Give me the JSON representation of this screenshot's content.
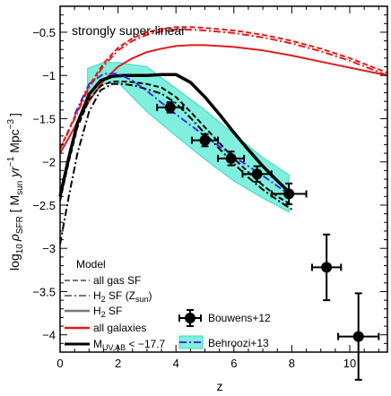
{
  "chart_data": {
    "type": "line",
    "annotation": "strongly super-linear",
    "xlabel": "z",
    "ylabel": {
      "main": "log",
      "main_sub": "10",
      "rho": "ρ",
      "rho_sub": "SFR",
      "units_open": " [ M",
      "units_sun": "sun",
      "units_yr": " yr",
      "units_yr_exp": "−1",
      "units_mpc": " Mpc",
      "units_mpc_exp": "−3",
      "units_close": "]"
    },
    "xlim": [
      0,
      11.3
    ],
    "ylim": [
      -4.2,
      -0.2
    ],
    "xticks": [
      0,
      2,
      4,
      6,
      8,
      10
    ],
    "yticks": [
      -4,
      -3.5,
      -3,
      -2.5,
      -2,
      -1.5,
      -1,
      -0.5
    ],
    "ytick_labels": [
      "−4",
      "−3.5",
      "−3",
      "−2.5",
      "−2",
      "−1.5",
      "−1",
      "−0.5"
    ],
    "band": {
      "x": [
        0.95,
        1.5,
        2.0,
        3.0,
        4.0,
        5.0,
        6.0,
        7.0,
        7.9
      ],
      "upper": [
        -0.92,
        -0.85,
        -0.85,
        -0.9,
        -1.15,
        -1.4,
        -1.68,
        -1.95,
        -2.15
      ],
      "lower": [
        -1.3,
        -1.1,
        -1.08,
        -1.42,
        -1.7,
        -1.97,
        -2.22,
        -2.42,
        -2.58
      ]
    },
    "series": [
      {
        "name": "all galaxies",
        "style": "all-gas",
        "color": "#e11b1b",
        "width": 2,
        "dash": "6,3",
        "x": [
          0,
          0.5,
          1,
          1.5,
          2,
          2.5,
          3,
          3.5,
          4,
          4.5,
          5,
          6,
          7,
          8,
          9,
          10,
          11.3
        ],
        "y": [
          -1.85,
          -1.48,
          -1.12,
          -0.86,
          -0.68,
          -0.57,
          -0.5,
          -0.46,
          -0.44,
          -0.44,
          -0.45,
          -0.48,
          -0.53,
          -0.6,
          -0.69,
          -0.8,
          -0.97
        ]
      },
      {
        "name": "all galaxies",
        "style": "h2-zsun",
        "color": "#e11b1b",
        "width": 2,
        "dash": "8,3,2,3",
        "x": [
          0,
          0.5,
          1,
          1.5,
          2,
          2.5,
          3,
          3.5,
          4,
          4.5,
          5,
          6,
          7,
          8,
          9,
          10,
          11.3
        ],
        "y": [
          -1.85,
          -1.5,
          -1.14,
          -0.89,
          -0.71,
          -0.6,
          -0.53,
          -0.49,
          -0.47,
          -0.47,
          -0.48,
          -0.51,
          -0.56,
          -0.63,
          -0.72,
          -0.83,
          -1.0
        ]
      },
      {
        "name": "all galaxies",
        "style": "h2",
        "color": "#e11b1b",
        "width": 2,
        "dash": "",
        "x": [
          0,
          0.5,
          1,
          1.5,
          2,
          2.5,
          3,
          3.5,
          4,
          4.5,
          5,
          6,
          7,
          8,
          9,
          10,
          11.3
        ],
        "y": [
          -1.9,
          -1.6,
          -1.3,
          -1.06,
          -0.9,
          -0.8,
          -0.73,
          -0.69,
          -0.66,
          -0.65,
          -0.65,
          -0.67,
          -0.71,
          -0.77,
          -0.84,
          -0.91,
          -1.0
        ]
      },
      {
        "name": "M_UV,AB < −17.7",
        "style": "all-gas",
        "color": "#000000",
        "width": 2,
        "dash": "6,3",
        "x": [
          0,
          0.3,
          0.6,
          1,
          1.4,
          1.8,
          2.2,
          2.6,
          3,
          3.5,
          4,
          4.5,
          5,
          5.5,
          6,
          6.5,
          7,
          7.5,
          8
        ],
        "y": [
          -2.45,
          -2.0,
          -1.6,
          -1.28,
          -1.12,
          -1.07,
          -1.07,
          -1.08,
          -1.1,
          -1.14,
          -1.25,
          -1.42,
          -1.6,
          -1.78,
          -1.96,
          -2.12,
          -2.27,
          -2.4,
          -2.5
        ]
      },
      {
        "name": "M_UV,AB < −17.7",
        "style": "h2-zsun",
        "color": "#000000",
        "width": 2,
        "dash": "8,3,2,3",
        "x": [
          0,
          0.3,
          0.6,
          1,
          1.4,
          1.8,
          2.2,
          2.6,
          3,
          3.5,
          4,
          4.5,
          5,
          5.5,
          6,
          6.5,
          7,
          7.5,
          8
        ],
        "y": [
          -2.95,
          -2.4,
          -1.9,
          -1.42,
          -1.17,
          -1.1,
          -1.1,
          -1.12,
          -1.16,
          -1.21,
          -1.32,
          -1.49,
          -1.67,
          -1.85,
          -2.02,
          -2.18,
          -2.32,
          -2.44,
          -2.55
        ]
      },
      {
        "name": "M_UV,AB < −17.7",
        "style": "h2",
        "color": "#000000",
        "width": 3.5,
        "dash": "",
        "x": [
          0,
          0.3,
          0.6,
          1,
          1.4,
          1.8,
          2.2,
          2.6,
          3,
          3.5,
          4,
          4.5,
          5,
          5.5,
          6,
          6.5,
          7,
          7.5,
          8
        ],
        "y": [
          -2.4,
          -1.95,
          -1.55,
          -1.22,
          -1.06,
          -1.01,
          -1.0,
          -1.0,
          -1.0,
          -0.99,
          -0.99,
          -1.08,
          -1.25,
          -1.45,
          -1.66,
          -1.86,
          -2.05,
          -2.22,
          -2.38
        ]
      },
      {
        "name": "Behroozi+13",
        "style": "behroozi",
        "color": "#4a2bd6",
        "width": 2,
        "dash": "8,3,2,3",
        "x": [
          0.5,
          1.0,
          1.5,
          2.0,
          2.5,
          3.0,
          4.0,
          5.0,
          6.0,
          7.0,
          8.0
        ],
        "y": [
          -1.45,
          -1.1,
          -0.98,
          -0.98,
          -1.06,
          -1.18,
          -1.45,
          -1.7,
          -1.94,
          -2.16,
          -2.4
        ]
      }
    ],
    "points": {
      "name": "Bouwens+12",
      "color": "#000000",
      "data": [
        {
          "x": 3.8,
          "y": -1.37,
          "xerr": 0.45,
          "yerr": 0.06
        },
        {
          "x": 5.0,
          "y": -1.75,
          "xerr": 0.45,
          "yerr": 0.07
        },
        {
          "x": 5.9,
          "y": -1.96,
          "xerr": 0.45,
          "yerr": 0.08
        },
        {
          "x": 6.8,
          "y": -2.14,
          "xerr": 0.5,
          "yerr": 0.09
        },
        {
          "x": 7.9,
          "y": -2.37,
          "xerr": 0.6,
          "yerr": 0.12
        },
        {
          "x": 9.2,
          "y": -3.22,
          "xerr": 0.5,
          "yerr": 0.38
        },
        {
          "x": 10.3,
          "y": -4.02,
          "xerr": 0.7,
          "yerr": 0.5
        }
      ]
    },
    "legend": {
      "title": "Model",
      "styles": [
        {
          "label": "all gas SF",
          "dash": "6,3"
        },
        {
          "label_main": "H",
          "label_sub": "2",
          "label_rest": " SF (Z",
          "label_sub2": "sun",
          "label_end": ")",
          "dash": "8,3,2,3"
        },
        {
          "label_main": "H",
          "label_sub": "2",
          "label_rest": " SF",
          "dash": ""
        }
      ],
      "models": [
        {
          "label": "all galaxies",
          "color": "#e11b1b"
        },
        {
          "label_main": "M",
          "label_sub": "UV,AB",
          "label_rest": " < −17.7",
          "color": "#000000"
        }
      ],
      "observations": [
        {
          "label": "Bouwens+12"
        },
        {
          "label": "Behroozi+13"
        }
      ]
    },
    "colors": {
      "band": "#7ff0dd",
      "band_stroke": "#3fd6c0",
      "legend_style_gray": "#777777"
    }
  }
}
